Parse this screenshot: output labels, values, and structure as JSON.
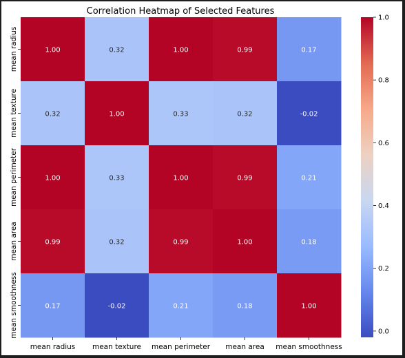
{
  "chart_data": {
    "type": "heatmap",
    "title": "Correlation Heatmap of Selected Features",
    "xlabel": "",
    "ylabel": "",
    "x_categories": [
      "mean radius",
      "mean texture",
      "mean perimeter",
      "mean area",
      "mean smoothness"
    ],
    "y_categories": [
      "mean radius",
      "mean texture",
      "mean perimeter",
      "mean area",
      "mean smoothness"
    ],
    "values": [
      [
        1.0,
        0.32,
        1.0,
        0.99,
        0.17
      ],
      [
        0.32,
        1.0,
        0.33,
        0.32,
        -0.02
      ],
      [
        1.0,
        0.33,
        1.0,
        0.99,
        0.21
      ],
      [
        0.99,
        0.32,
        0.99,
        1.0,
        0.18
      ],
      [
        0.17,
        -0.02,
        0.21,
        0.18,
        1.0
      ]
    ],
    "annotation_format": "2 decimals",
    "colormap": "coolwarm",
    "colormap_stops": [
      "#3b4cc0",
      "#6688ee",
      "#9abbff",
      "#c9d7f0",
      "#edd1c2",
      "#f7a889",
      "#e26952",
      "#b40426"
    ],
    "vmin": -0.02,
    "vmax": 1.0,
    "colorbar": {
      "ticks": [
        0.0,
        0.2,
        0.4,
        0.6,
        0.8,
        1.0
      ],
      "tick_labels": [
        "0.0",
        "0.2",
        "0.4",
        "0.6",
        "0.8",
        "1.0"
      ],
      "placement": "right"
    },
    "grid": false
  }
}
